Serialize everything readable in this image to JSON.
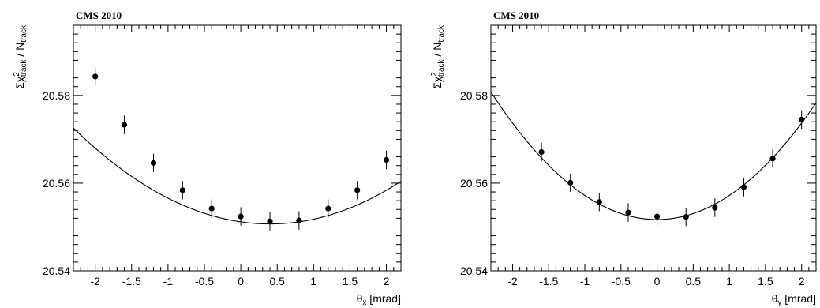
{
  "chart_data": [
    {
      "type": "scatter",
      "header": "CMS 2010",
      "xlabel": {
        "symbol": "θ",
        "sub": "x",
        "unit": " [mrad]"
      },
      "ylabel": {
        "sigma": "Σχ",
        "sup": "2",
        "sub": "track",
        "over": " / N",
        "over_sub": "track"
      },
      "xlim": [
        -2.3,
        2.2
      ],
      "ylim": [
        20.54,
        20.596
      ],
      "x_ticks": [
        -2,
        -1.5,
        -1,
        -0.5,
        0,
        0.5,
        1,
        1.5,
        2
      ],
      "x_tick_labels": [
        "-2",
        "-1.5",
        "-1",
        "-0.5",
        "0",
        "0.5",
        "1",
        "1.5",
        "2"
      ],
      "y_ticks": [
        20.54,
        20.56,
        20.58
      ],
      "y_tick_labels": [
        "20.54",
        "20.56",
        "20.58"
      ],
      "x_minor_step": 0.1,
      "y_minor_step": 0.002,
      "series": [
        {
          "x": [
            -2.0,
            -1.6,
            -1.2,
            -0.8,
            -0.4,
            0.0,
            0.4,
            0.8,
            1.2,
            1.6,
            2.0
          ],
          "y": [
            20.5843,
            20.5733,
            20.5646,
            20.5584,
            20.5542,
            20.5524,
            20.5513,
            20.5515,
            20.5542,
            20.5584,
            20.5653
          ],
          "yerr": [
            0.0021,
            0.0021,
            0.0021,
            0.0021,
            0.0021,
            0.0021,
            0.0021,
            0.0021,
            0.0021,
            0.0021,
            0.0021
          ]
        }
      ],
      "fit": {
        "type": "parabola",
        "a": 0.003,
        "x0": 0.4,
        "c": 20.5507
      },
      "color": "#000000"
    },
    {
      "type": "scatter",
      "header": "CMS 2010",
      "xlabel": {
        "symbol": "θ",
        "sub": "y",
        "unit": " [mrad]"
      },
      "ylabel": {
        "sigma": "Σχ",
        "sup": "2",
        "sub": "track",
        "over": " / N",
        "over_sub": "track"
      },
      "xlim": [
        -2.3,
        2.2
      ],
      "ylim": [
        20.54,
        20.596
      ],
      "x_ticks": [
        -2,
        -1.5,
        -1,
        -0.5,
        0,
        0.5,
        1,
        1.5,
        2
      ],
      "x_tick_labels": [
        "-2",
        "-1.5",
        "-1",
        "-0.5",
        "0",
        "0.5",
        "1",
        "1.5",
        "2"
      ],
      "y_ticks": [
        20.54,
        20.56,
        20.58
      ],
      "y_tick_labels": [
        "20.54",
        "20.56",
        "20.58"
      ],
      "x_minor_step": 0.1,
      "y_minor_step": 0.002,
      "series": [
        {
          "x": [
            -1.6,
            -1.2,
            -0.8,
            -0.4,
            0.0,
            0.4,
            0.8,
            1.2,
            1.6,
            2.0
          ],
          "y": [
            20.5671,
            20.5601,
            20.5557,
            20.5533,
            20.5524,
            20.5523,
            20.5544,
            20.5591,
            20.5656,
            20.5745
          ],
          "yerr": [
            0.0021,
            0.0021,
            0.0021,
            0.0021,
            0.0021,
            0.0021,
            0.0021,
            0.0021,
            0.0021,
            0.0021
          ]
        }
      ],
      "fit": {
        "type": "parabola",
        "a": 0.0055,
        "x0": 0.0,
        "c": 20.5517
      },
      "color": "#000000"
    }
  ]
}
